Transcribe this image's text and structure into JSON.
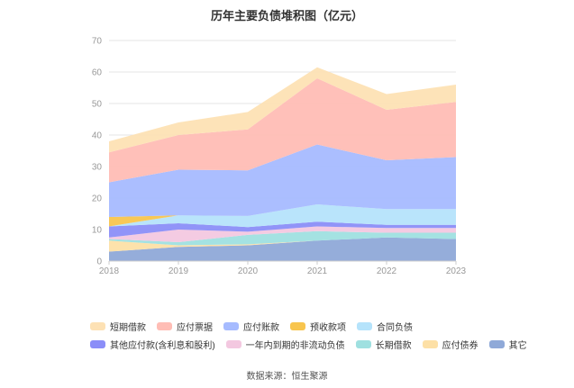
{
  "chart_data": {
    "type": "area",
    "stacked": true,
    "title": "历年主要负债堆积图（亿元）",
    "x": [
      "2018",
      "2019",
      "2020",
      "2021",
      "2022",
      "2023"
    ],
    "ylim": [
      0,
      70
    ],
    "yticks": [
      0,
      10,
      20,
      30,
      40,
      50,
      60,
      70
    ],
    "grid": true,
    "legend_position": "bottom",
    "series": [
      {
        "name": "其它",
        "color": "#8fa9d8",
        "values": [
          3.0,
          4.5,
          5.0,
          6.5,
          7.5,
          7.0
        ]
      },
      {
        "name": "应付债券",
        "color": "#fde0a6",
        "values": [
          3.5,
          0.5,
          0.3,
          0.0,
          0.0,
          0.0
        ]
      },
      {
        "name": "长期借款",
        "color": "#9fe0e0",
        "values": [
          0.5,
          1.0,
          3.0,
          3.0,
          1.5,
          2.0
        ]
      },
      {
        "name": "一年内到期的非流动负债",
        "color": "#f3c8e0",
        "values": [
          0.5,
          4.0,
          1.0,
          1.5,
          1.5,
          1.5
        ]
      },
      {
        "name": "其他应付款(含利息和股利)",
        "color": "#8b8ef8",
        "values": [
          3.5,
          2.0,
          1.5,
          1.5,
          1.0,
          1.0
        ]
      },
      {
        "name": "合同负债",
        "color": "#b5e3fb",
        "values": [
          0.0,
          2.5,
          3.5,
          5.5,
          5.0,
          5.0
        ]
      },
      {
        "name": "预收款项",
        "color": "#f8c54e",
        "values": [
          3.0,
          0.0,
          0.0,
          0.0,
          0.0,
          0.0
        ]
      },
      {
        "name": "应付账款",
        "color": "#a6bbff",
        "values": [
          11.0,
          14.5,
          14.5,
          19.0,
          15.5,
          16.5
        ]
      },
      {
        "name": "应付票据",
        "color": "#ffbdb5",
        "values": [
          9.5,
          11.0,
          13.0,
          21.0,
          16.0,
          17.5
        ]
      },
      {
        "name": "短期借款",
        "color": "#fde1b4",
        "values": [
          3.5,
          4.0,
          5.5,
          3.5,
          5.0,
          5.5
        ]
      }
    ],
    "legend_rows": [
      [
        "短期借款",
        "应付票据",
        "应付账款",
        "预收款项",
        "合同负债"
      ],
      [
        "其他应付款(含利息和股利)",
        "一年内到期的非流动负债",
        "长期借款",
        "应付债券",
        "其它"
      ]
    ]
  },
  "source_text": "数据来源：恒生聚源"
}
